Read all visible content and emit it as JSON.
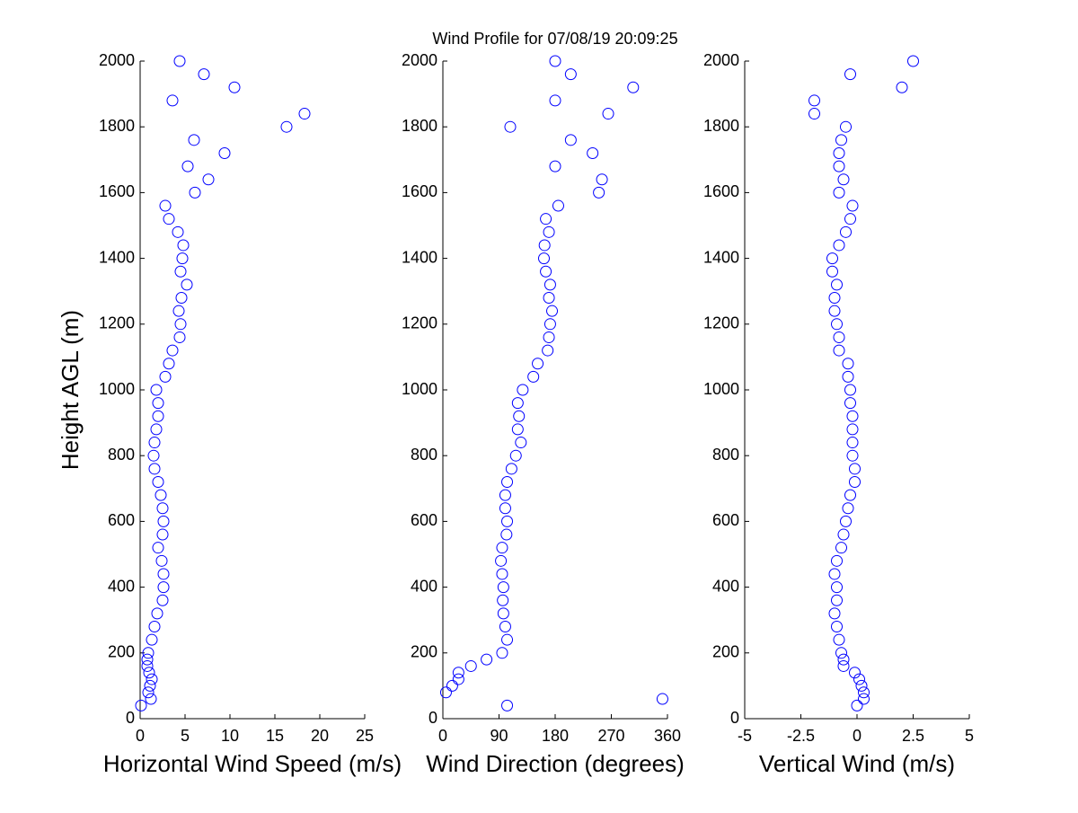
{
  "chart_data": [
    {
      "type": "scatter",
      "xlabel": "Horizontal Wind Speed (m/s)",
      "ylabel": "Height AGL (m)",
      "color": "#0000ff",
      "xlim": [
        0,
        25
      ],
      "xticks": [
        0,
        5,
        10,
        15,
        20,
        25
      ],
      "ylim": [
        0,
        2000
      ],
      "yticks": [
        0,
        200,
        400,
        600,
        800,
        1000,
        1200,
        1400,
        1600,
        1800,
        2000
      ],
      "x": [
        0.1,
        1.2,
        0.9,
        1.1,
        1.3,
        1.0,
        0.8,
        0.8,
        0.9,
        1.3,
        1.6,
        1.9,
        2.5,
        2.6,
        2.6,
        2.4,
        2.0,
        2.5,
        2.6,
        2.5,
        2.3,
        2.0,
        1.6,
        1.5,
        1.6,
        1.8,
        2.0,
        2.0,
        1.8,
        2.8,
        3.2,
        3.6,
        4.4,
        4.5,
        4.3,
        4.6,
        5.2,
        4.5,
        4.7,
        4.8,
        4.2,
        3.2,
        2.8,
        6.1,
        7.6,
        5.3,
        9.4,
        6.0,
        16.3,
        18.3,
        3.6,
        10.5,
        7.1,
        4.4
      ],
      "y": [
        40,
        60,
        80,
        100,
        120,
        140,
        160,
        180,
        200,
        240,
        280,
        320,
        360,
        400,
        440,
        480,
        520,
        560,
        600,
        640,
        680,
        720,
        760,
        800,
        840,
        880,
        920,
        960,
        1000,
        1040,
        1080,
        1120,
        1160,
        1200,
        1240,
        1280,
        1320,
        1360,
        1400,
        1440,
        1480,
        1520,
        1560,
        1600,
        1640,
        1680,
        1720,
        1760,
        1800,
        1840,
        1880,
        1920,
        1960,
        2000
      ]
    },
    {
      "type": "scatter",
      "title": "Wind Profile for  07/08/19 20:09:25",
      "xlabel": "Wind Direction (degrees)",
      "color": "#0000ff",
      "xlim": [
        0,
        360
      ],
      "xticks": [
        0,
        90,
        180,
        270,
        360
      ],
      "ylim": [
        0,
        2000
      ],
      "yticks": [
        0,
        200,
        400,
        600,
        800,
        1000,
        1200,
        1400,
        1600,
        1800,
        2000
      ],
      "x": [
        103,
        352,
        5,
        15,
        25,
        25,
        45,
        70,
        95,
        103,
        100,
        97,
        96,
        97,
        95,
        93,
        95,
        102,
        103,
        100,
        100,
        103,
        110,
        117,
        125,
        120,
        122,
        120,
        128,
        145,
        152,
        168,
        170,
        172,
        175,
        170,
        172,
        165,
        162,
        163,
        170,
        165,
        185,
        250,
        255,
        180,
        240,
        205,
        108,
        265,
        180,
        305,
        205,
        180
      ],
      "y": [
        40,
        60,
        80,
        100,
        120,
        140,
        160,
        180,
        200,
        240,
        280,
        320,
        360,
        400,
        440,
        480,
        520,
        560,
        600,
        640,
        680,
        720,
        760,
        800,
        840,
        880,
        920,
        960,
        1000,
        1040,
        1080,
        1120,
        1160,
        1200,
        1240,
        1280,
        1320,
        1360,
        1400,
        1440,
        1480,
        1520,
        1560,
        1600,
        1640,
        1680,
        1720,
        1760,
        1800,
        1840,
        1880,
        1920,
        1960,
        2000
      ]
    },
    {
      "type": "scatter",
      "xlabel": "Vertical Wind (m/s)",
      "color": "#0000ff",
      "xlim": [
        -5,
        5
      ],
      "xticks": [
        -5,
        -2.5,
        0,
        2.5,
        5
      ],
      "ylim": [
        0,
        2000
      ],
      "yticks": [
        0,
        200,
        400,
        600,
        800,
        1000,
        1200,
        1400,
        1600,
        1800,
        2000
      ],
      "x": [
        0.0,
        0.3,
        0.3,
        0.2,
        0.1,
        -0.1,
        -0.6,
        -0.6,
        -0.7,
        -0.8,
        -0.9,
        -1.0,
        -0.9,
        -0.9,
        -1.0,
        -0.9,
        -0.7,
        -0.6,
        -0.5,
        -0.4,
        -0.3,
        -0.1,
        -0.1,
        -0.2,
        -0.2,
        -0.2,
        -0.2,
        -0.3,
        -0.3,
        -0.4,
        -0.4,
        -0.8,
        -0.8,
        -0.9,
        -1.0,
        -1.0,
        -0.9,
        -1.1,
        -1.1,
        -0.8,
        -0.5,
        -0.3,
        -0.2,
        -0.8,
        -0.6,
        -0.8,
        -0.8,
        -0.7,
        -0.5,
        -1.9,
        -1.9,
        2.0,
        -0.3,
        2.5
      ],
      "y": [
        40,
        60,
        80,
        100,
        120,
        140,
        160,
        180,
        200,
        240,
        280,
        320,
        360,
        400,
        440,
        480,
        520,
        560,
        600,
        640,
        680,
        720,
        760,
        800,
        840,
        880,
        920,
        960,
        1000,
        1040,
        1080,
        1120,
        1160,
        1200,
        1240,
        1280,
        1320,
        1360,
        1400,
        1440,
        1480,
        1520,
        1560,
        1600,
        1640,
        1680,
        1720,
        1760,
        1800,
        1840,
        1880,
        1920,
        1960,
        2000
      ]
    }
  ]
}
